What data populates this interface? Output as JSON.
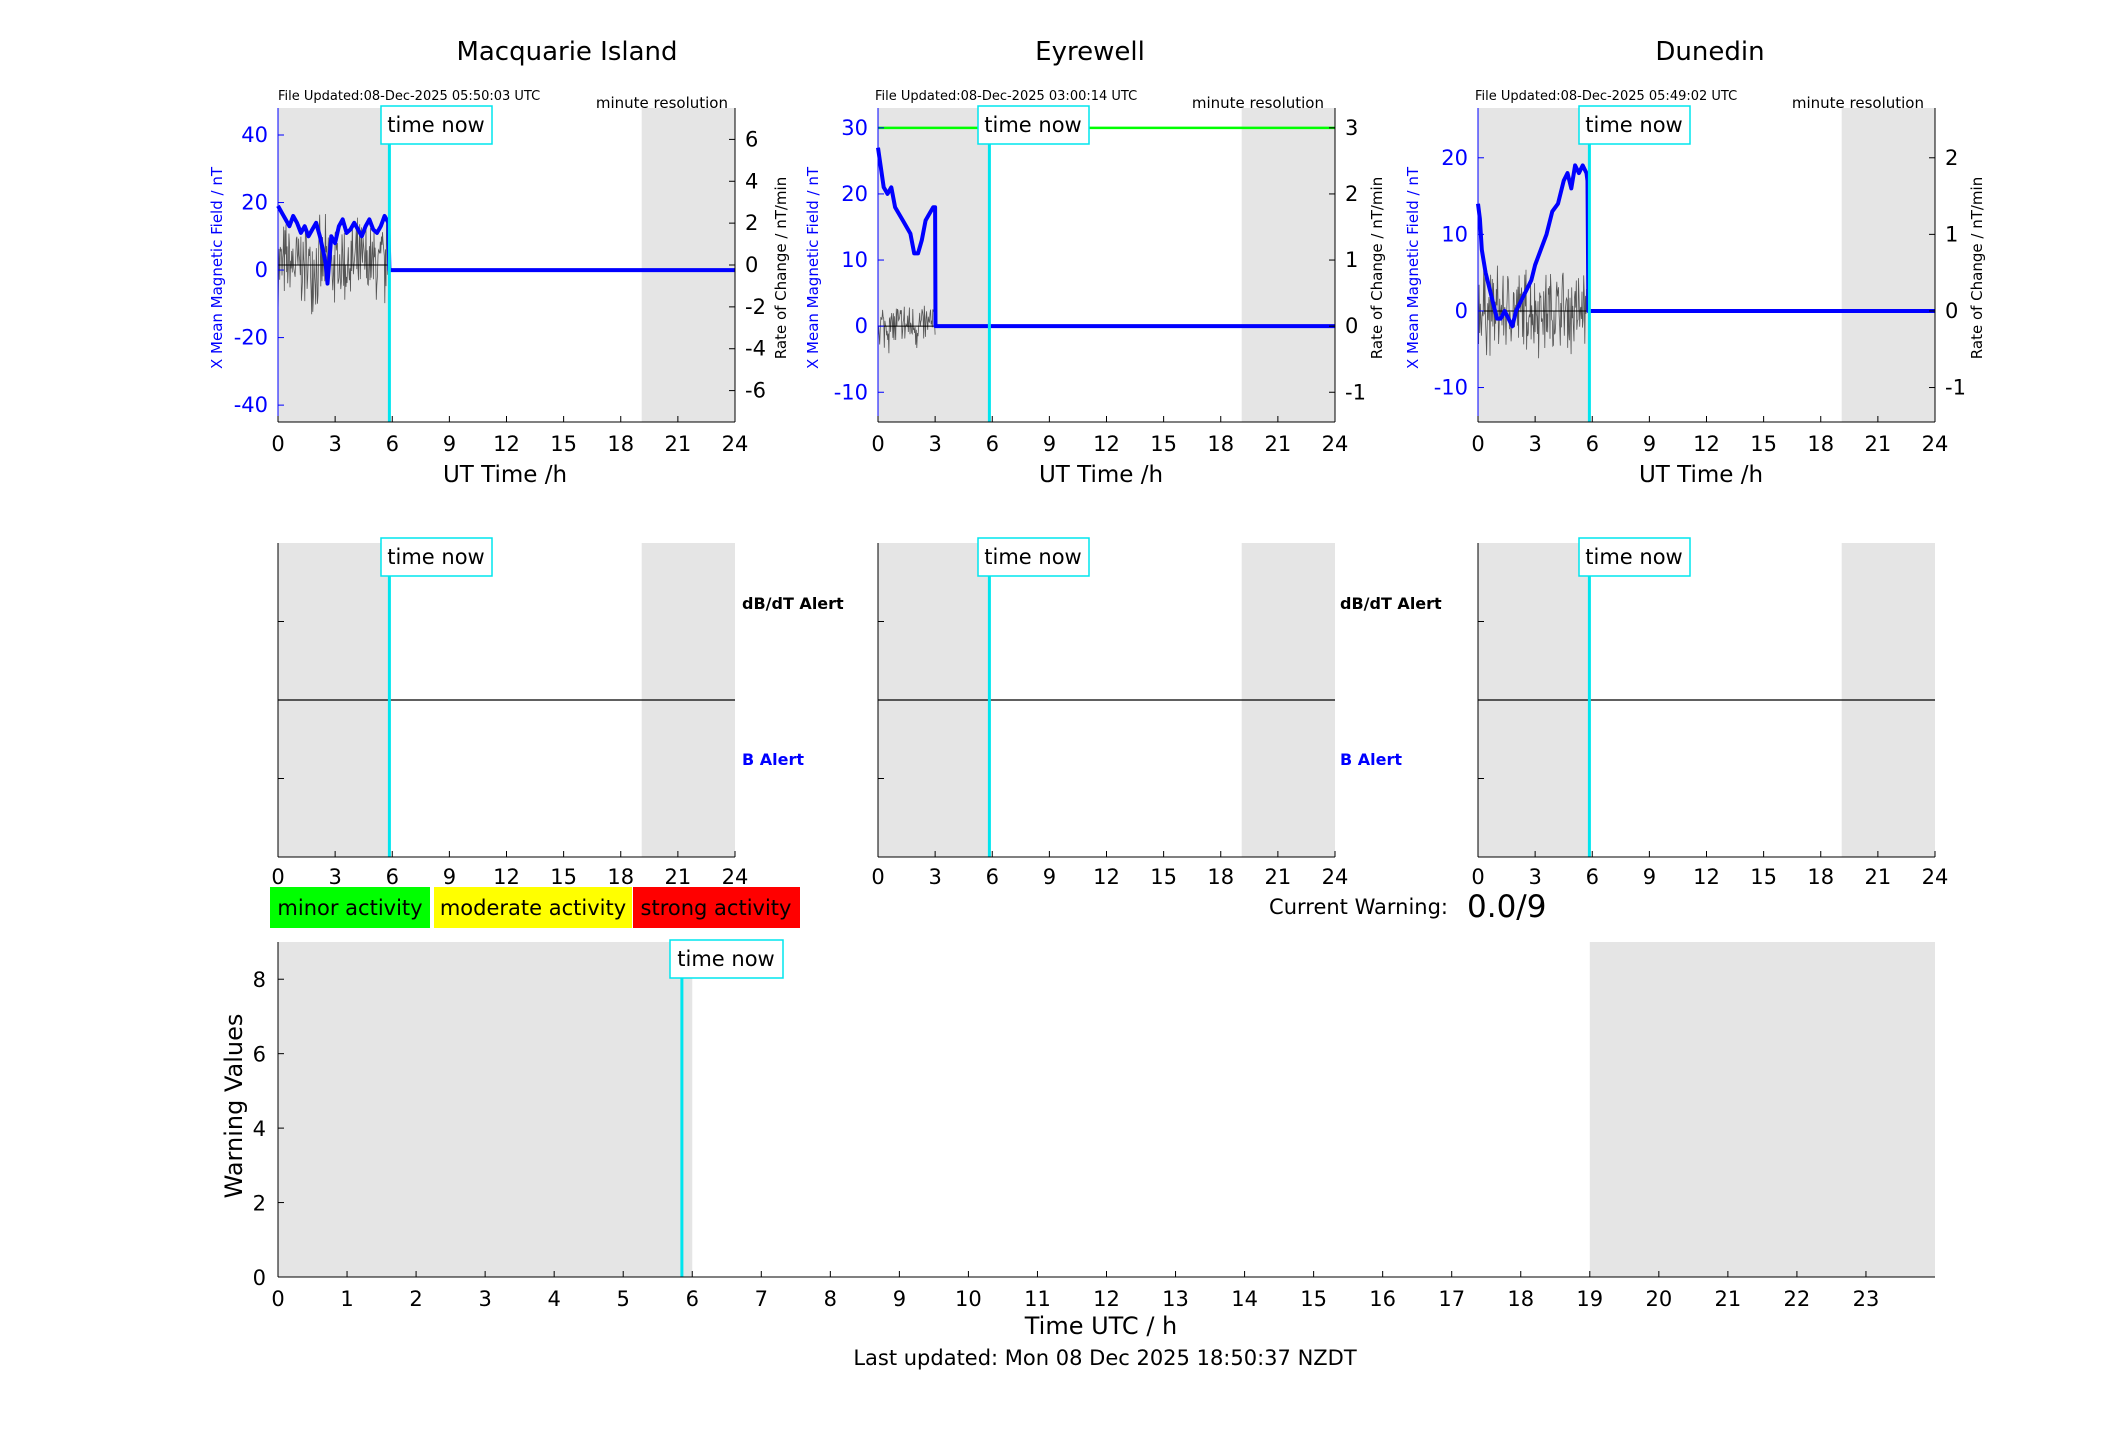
{
  "stations": [
    {
      "title": "Macquarie Island",
      "file_updated": "File Updated:08-Dec-2025 05:50:03 UTC",
      "resolution_label": "minute resolution",
      "ylabel_left": "X Mean Magnetic Field / nT",
      "ylabel_right": "Rate of Change / nT/min",
      "xlabel": "UT Time /h",
      "time_now_label": "time now"
    },
    {
      "title": "Eyrewell",
      "file_updated": "File Updated:08-Dec-2025 03:00:14 UTC",
      "resolution_label": "minute resolution",
      "ylabel_left": "X Mean Magnetic Field / nT",
      "ylabel_right": "Rate of Change / nT/min",
      "xlabel": "UT Time /h",
      "time_now_label": "time now"
    },
    {
      "title": "Dunedin",
      "file_updated": "File Updated:08-Dec-2025 05:49:02 UTC",
      "resolution_label": "minute resolution",
      "ylabel_left": "X Mean Magnetic Field / nT",
      "ylabel_right": "Rate of Change / nT/min",
      "xlabel": "UT Time /h",
      "time_now_label": "time now"
    }
  ],
  "alert_labels": {
    "dbdt": "dB/dT Alert",
    "b": "B Alert"
  },
  "legend": [
    {
      "label": "minor activity",
      "color": "#00ff00"
    },
    {
      "label": "moderate activity",
      "color": "#ffff00"
    },
    {
      "label": "strong activity",
      "color": "#ff0000"
    }
  ],
  "current_warning": {
    "label": "Current Warning:",
    "value": "0.0/9"
  },
  "warning_plot": {
    "ylabel": "Warning Values",
    "xlabel": "Time UTC / h",
    "time_now_label": "time now"
  },
  "footer": "Last updated: Mon 08 Dec 2025 18:50:37 NZDT",
  "colors": {
    "field_line": "#0000ff",
    "time_now": "#00e5ee",
    "night_shade": "#e5e5e5",
    "threshold": "#00ff00",
    "rate_line": "#555555"
  },
  "chart_data": [
    {
      "type": "line",
      "title": "Macquarie Island",
      "xlabel": "UT Time /h",
      "ylabel": "X Mean Magnetic Field / nT",
      "ylabel_right": "Rate of Change / nT/min",
      "xlim": [
        0,
        24
      ],
      "ylim": [
        -45,
        48
      ],
      "ylim_right": [
        -7.5,
        7.5
      ],
      "xticks": [
        0,
        3,
        6,
        9,
        12,
        15,
        18,
        21,
        24
      ],
      "yticks": [
        -40,
        -20,
        0,
        20,
        40
      ],
      "yticks_right": [
        -6,
        -4,
        -2,
        0,
        2,
        4,
        6
      ],
      "time_now": 5.85,
      "night_shade": [
        [
          0,
          5.85
        ],
        [
          19.1,
          24
        ]
      ],
      "series": [
        {
          "x": [
            0,
            0.2,
            0.4,
            0.6,
            0.8,
            1.0,
            1.2,
            1.4,
            1.6,
            1.8,
            2.0,
            2.2,
            2.4,
            2.5,
            2.6,
            2.7,
            2.8,
            3.0,
            3.2,
            3.4,
            3.6,
            3.8,
            4.0,
            4.2,
            4.4,
            4.6,
            4.8,
            5.0,
            5.2,
            5.4,
            5.6,
            5.8,
            5.85,
            24
          ],
          "y": [
            19,
            17,
            15,
            13,
            16,
            14,
            11,
            13,
            10,
            12,
            14,
            10,
            5,
            2,
            -4,
            3,
            10,
            8,
            13,
            15,
            11,
            12,
            14,
            12,
            10,
            13,
            15,
            12,
            11,
            13,
            16,
            14,
            0,
            0
          ]
        }
      ]
    },
    {
      "type": "line",
      "title": "Eyrewell",
      "xlabel": "UT Time /h",
      "ylabel": "X Mean Magnetic Field / nT",
      "ylabel_right": "Rate of Change / nT/min",
      "xlim": [
        0,
        24
      ],
      "ylim": [
        -14.5,
        33
      ],
      "ylim_right": [
        -1.45,
        3.3
      ],
      "xticks": [
        0,
        3,
        6,
        9,
        12,
        15,
        18,
        21,
        24
      ],
      "yticks": [
        -10,
        0,
        10,
        20,
        30
      ],
      "yticks_right": [
        -1,
        0,
        1,
        2,
        3
      ],
      "time_now": 5.85,
      "night_shade": [
        [
          0,
          5.85
        ],
        [
          19.1,
          24
        ]
      ],
      "threshold": 30,
      "series": [
        {
          "x": [
            0,
            0.1,
            0.3,
            0.5,
            0.7,
            0.9,
            1.1,
            1.3,
            1.5,
            1.7,
            1.9,
            2.1,
            2.3,
            2.5,
            2.7,
            2.9,
            3.0,
            3.02,
            24
          ],
          "y": [
            27,
            25,
            21,
            20,
            21,
            18,
            17,
            16,
            15,
            14,
            11,
            11,
            13,
            16,
            17,
            18,
            18,
            0,
            0
          ]
        }
      ]
    },
    {
      "type": "line",
      "title": "Dunedin",
      "xlabel": "UT Time /h",
      "ylabel": "X Mean Magnetic Field / nT",
      "ylabel_right": "Rate of Change / nT/min",
      "xlim": [
        0,
        24
      ],
      "ylim": [
        -14.5,
        26.5
      ],
      "ylim_right": [
        -1.45,
        2.65
      ],
      "xticks": [
        0,
        3,
        6,
        9,
        12,
        15,
        18,
        21,
        24
      ],
      "yticks": [
        -10,
        0,
        10,
        20
      ],
      "yticks_right": [
        -1,
        0,
        1,
        2
      ],
      "time_now": 5.85,
      "night_shade": [
        [
          0,
          5.85
        ],
        [
          19.1,
          24
        ]
      ],
      "series": [
        {
          "x": [
            0,
            0.1,
            0.2,
            0.4,
            0.6,
            0.8,
            1.0,
            1.2,
            1.4,
            1.6,
            1.8,
            2.0,
            2.2,
            2.4,
            2.6,
            2.8,
            3.0,
            3.3,
            3.6,
            3.9,
            4.2,
            4.5,
            4.7,
            4.9,
            5.1,
            5.3,
            5.5,
            5.7,
            5.75,
            5.8,
            24
          ],
          "y": [
            14,
            12,
            8,
            5,
            3,
            1,
            -1,
            -1,
            0,
            -1,
            -2,
            0,
            1,
            2,
            3,
            4,
            6,
            8,
            10,
            13,
            14,
            17,
            18,
            16,
            19,
            18,
            19,
            18,
            17,
            0,
            0
          ]
        }
      ]
    },
    {
      "type": "bar",
      "xlabel": "Time UTC / h",
      "ylabel": "Warning Values",
      "xlim": [
        0,
        24
      ],
      "ylim": [
        0,
        9
      ],
      "xticks": [
        0,
        1,
        2,
        3,
        4,
        5,
        6,
        7,
        8,
        9,
        10,
        11,
        12,
        13,
        14,
        15,
        16,
        17,
        18,
        19,
        20,
        21,
        22,
        23
      ],
      "yticks": [
        0,
        2,
        4,
        6,
        8
      ],
      "time_now": 5.85,
      "night_shade": [
        [
          0,
          6.0
        ],
        [
          19.0,
          24
        ]
      ],
      "values": []
    }
  ]
}
